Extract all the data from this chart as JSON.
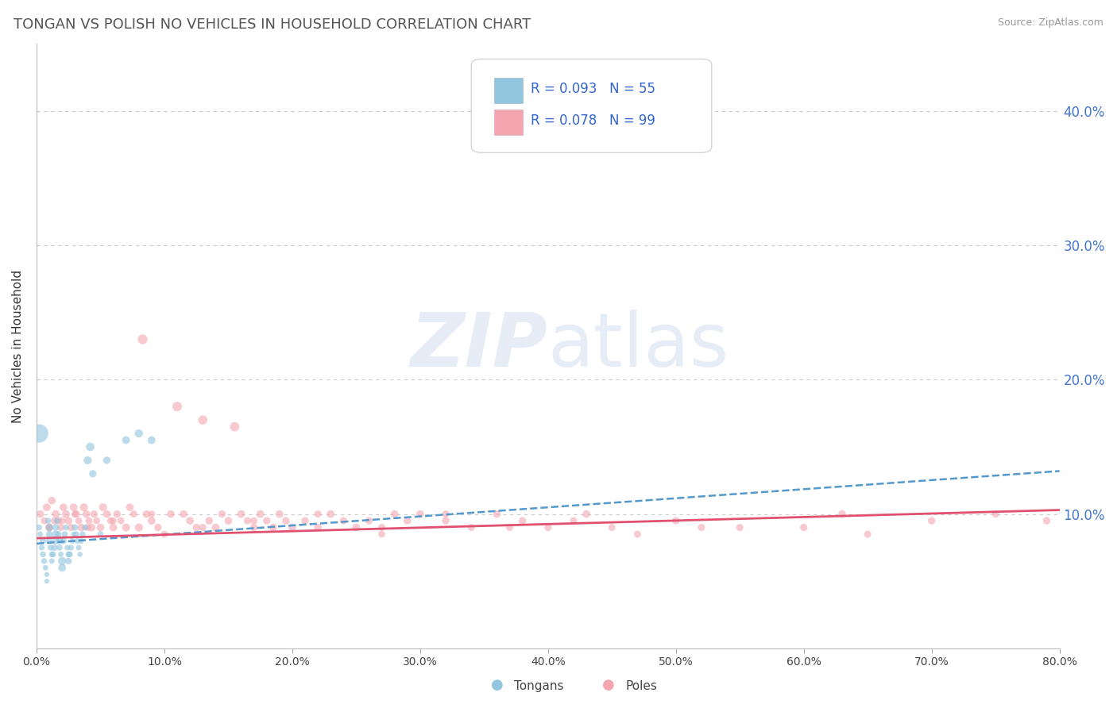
{
  "title": "TONGAN VS POLISH NO VEHICLES IN HOUSEHOLD CORRELATION CHART",
  "source": "Source: ZipAtlas.com",
  "ylabel_label": "No Vehicles in Household",
  "legend_label1": "Tongans",
  "legend_label2": "Poles",
  "r1": 0.093,
  "n1": 55,
  "r2": 0.078,
  "n2": 99,
  "color_tongan": "#92C5DE",
  "color_polish": "#F4A6B0",
  "color_line_tongan": "#5599CC",
  "color_line_polish": "#E05070",
  "xlim": [
    0.0,
    0.8
  ],
  "ylim": [
    0.0,
    0.45
  ],
  "xtick_vals": [
    0.0,
    0.1,
    0.2,
    0.3,
    0.4,
    0.5,
    0.6,
    0.7,
    0.8
  ],
  "ytick_vals": [
    0.1,
    0.2,
    0.3,
    0.4
  ],
  "ytick_labels": [
    "10.0%",
    "20.0%",
    "30.0%",
    "40.0%"
  ],
  "xtick_labels": [
    "0.0%",
    "10.0%",
    "20.0%",
    "30.0%",
    "40.0%",
    "50.0%",
    "60.0%",
    "70.0%",
    "80.0%"
  ],
  "tongan_line": [
    0.078,
    0.132
  ],
  "polish_line": [
    0.082,
    0.103
  ],
  "tongan_x": [
    0.002,
    0.003,
    0.004,
    0.005,
    0.005,
    0.006,
    0.007,
    0.008,
    0.008,
    0.009,
    0.01,
    0.01,
    0.01,
    0.011,
    0.012,
    0.012,
    0.013,
    0.014,
    0.015,
    0.015,
    0.015,
    0.016,
    0.017,
    0.018,
    0.018,
    0.019,
    0.02,
    0.02,
    0.021,
    0.022,
    0.023,
    0.024,
    0.025,
    0.025,
    0.026,
    0.027,
    0.028,
    0.029,
    0.03,
    0.031,
    0.032,
    0.033,
    0.034,
    0.035,
    0.036,
    0.038,
    0.04,
    0.042,
    0.044,
    0.05,
    0.055,
    0.07,
    0.08,
    0.09,
    0.002
  ],
  "tongan_y": [
    0.09,
    0.085,
    0.075,
    0.08,
    0.07,
    0.065,
    0.06,
    0.055,
    0.05,
    0.095,
    0.09,
    0.085,
    0.08,
    0.075,
    0.07,
    0.065,
    0.07,
    0.075,
    0.08,
    0.085,
    0.09,
    0.095,
    0.085,
    0.08,
    0.075,
    0.07,
    0.065,
    0.06,
    0.08,
    0.085,
    0.09,
    0.075,
    0.07,
    0.065,
    0.07,
    0.075,
    0.08,
    0.085,
    0.09,
    0.085,
    0.08,
    0.075,
    0.07,
    0.08,
    0.085,
    0.09,
    0.14,
    0.15,
    0.13,
    0.085,
    0.14,
    0.155,
    0.16,
    0.155,
    0.16
  ],
  "tongan_size": [
    30,
    25,
    28,
    35,
    30,
    28,
    25,
    22,
    20,
    32,
    40,
    38,
    35,
    30,
    28,
    25,
    30,
    35,
    40,
    45,
    38,
    32,
    35,
    40,
    30,
    25,
    55,
    50,
    35,
    30,
    28,
    25,
    30,
    35,
    32,
    28,
    25,
    22,
    35,
    30,
    28,
    25,
    22,
    25,
    28,
    30,
    55,
    60,
    45,
    30,
    45,
    50,
    55,
    50,
    280
  ],
  "polish_x": [
    0.003,
    0.006,
    0.008,
    0.01,
    0.012,
    0.014,
    0.015,
    0.017,
    0.019,
    0.021,
    0.023,
    0.025,
    0.027,
    0.029,
    0.031,
    0.033,
    0.035,
    0.037,
    0.039,
    0.041,
    0.043,
    0.045,
    0.047,
    0.05,
    0.052,
    0.055,
    0.058,
    0.06,
    0.063,
    0.066,
    0.07,
    0.073,
    0.076,
    0.08,
    0.083,
    0.086,
    0.09,
    0.095,
    0.1,
    0.105,
    0.11,
    0.115,
    0.12,
    0.125,
    0.13,
    0.135,
    0.14,
    0.145,
    0.15,
    0.155,
    0.16,
    0.165,
    0.17,
    0.175,
    0.18,
    0.185,
    0.19,
    0.195,
    0.2,
    0.21,
    0.22,
    0.23,
    0.24,
    0.25,
    0.26,
    0.27,
    0.28,
    0.29,
    0.3,
    0.32,
    0.34,
    0.36,
    0.38,
    0.4,
    0.43,
    0.45,
    0.5,
    0.55,
    0.6,
    0.65,
    0.7,
    0.75,
    0.79,
    0.63,
    0.52,
    0.47,
    0.42,
    0.37,
    0.32,
    0.27,
    0.22,
    0.17,
    0.13,
    0.09,
    0.06,
    0.04,
    0.03,
    0.02,
    0.01
  ],
  "polish_y": [
    0.1,
    0.095,
    0.105,
    0.09,
    0.11,
    0.095,
    0.1,
    0.095,
    0.09,
    0.105,
    0.1,
    0.095,
    0.09,
    0.105,
    0.1,
    0.095,
    0.09,
    0.105,
    0.1,
    0.095,
    0.09,
    0.1,
    0.095,
    0.09,
    0.105,
    0.1,
    0.095,
    0.09,
    0.1,
    0.095,
    0.09,
    0.105,
    0.1,
    0.09,
    0.23,
    0.1,
    0.095,
    0.09,
    0.085,
    0.1,
    0.18,
    0.1,
    0.095,
    0.09,
    0.17,
    0.095,
    0.09,
    0.1,
    0.095,
    0.165,
    0.1,
    0.095,
    0.09,
    0.1,
    0.095,
    0.09,
    0.1,
    0.095,
    0.09,
    0.095,
    0.09,
    0.1,
    0.095,
    0.09,
    0.095,
    0.09,
    0.1,
    0.095,
    0.1,
    0.095,
    0.09,
    0.1,
    0.095,
    0.09,
    0.1,
    0.09,
    0.095,
    0.09,
    0.09,
    0.085,
    0.095,
    0.1,
    0.095,
    0.1,
    0.09,
    0.085,
    0.095,
    0.09,
    0.1,
    0.085,
    0.1,
    0.095,
    0.09,
    0.1,
    0.095,
    0.09,
    0.1,
    0.095,
    0.09
  ],
  "polish_size": [
    45,
    40,
    50,
    55,
    48,
    42,
    50,
    45,
    40,
    48,
    52,
    48,
    42,
    50,
    45,
    40,
    48,
    52,
    48,
    42,
    50,
    45,
    40,
    48,
    52,
    48,
    42,
    50,
    45,
    40,
    52,
    48,
    42,
    55,
    80,
    48,
    50,
    45,
    42,
    48,
    75,
    48,
    50,
    45,
    70,
    48,
    50,
    45,
    48,
    72,
    50,
    45,
    48,
    50,
    45,
    48,
    50,
    45,
    48,
    45,
    48,
    50,
    45,
    48,
    45,
    42,
    48,
    45,
    48,
    45,
    42,
    48,
    45,
    42,
    48,
    42,
    45,
    42,
    45,
    42,
    45,
    42,
    45,
    48,
    42,
    40,
    42,
    40,
    42,
    38,
    42,
    40,
    42,
    40,
    38,
    40,
    42,
    40,
    38
  ]
}
